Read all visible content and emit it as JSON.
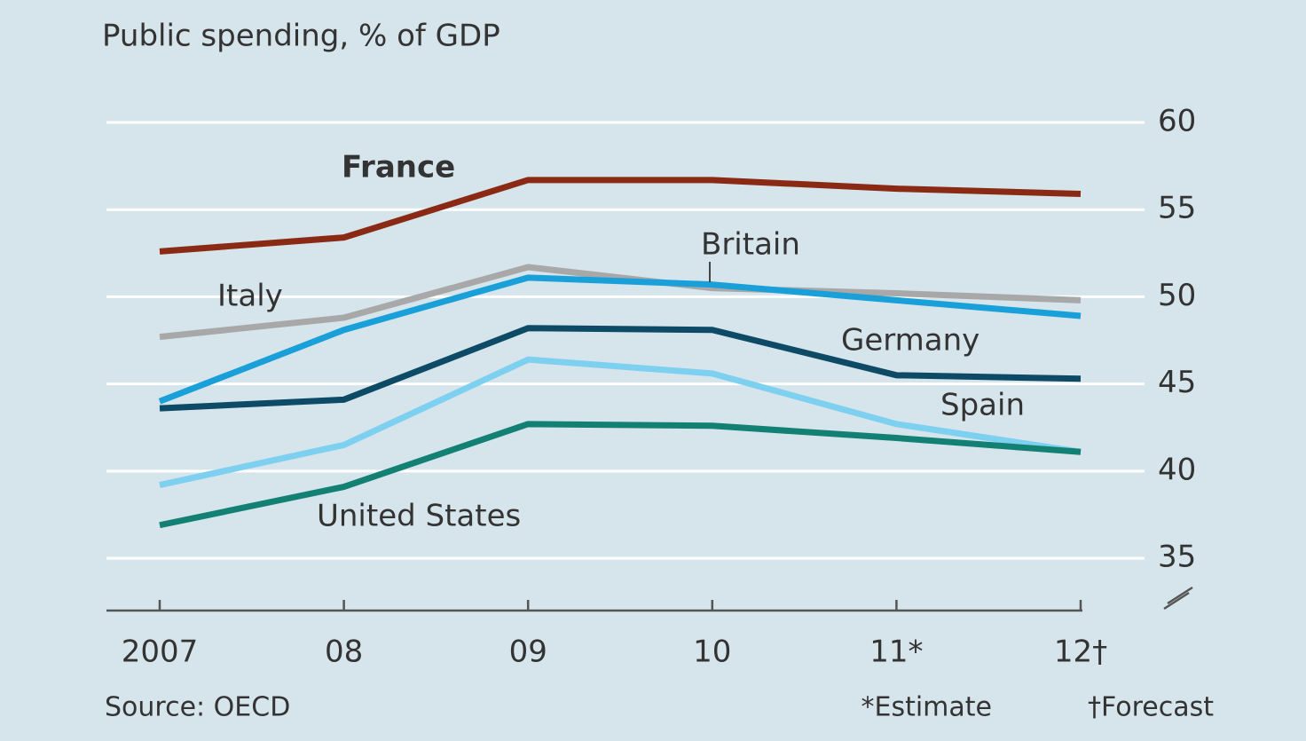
{
  "chart_data": {
    "type": "line",
    "title": "Public spending, % of GDP",
    "source": "Source: OECD",
    "notes": [
      "*Estimate",
      "†Forecast"
    ],
    "categories": [
      "2007",
      "08",
      "09",
      "10",
      "11*",
      "12†"
    ],
    "series": [
      {
        "name": "France",
        "color": "#8b2a14",
        "values": [
          52.6,
          53.4,
          56.7,
          56.7,
          56.2,
          55.9
        ]
      },
      {
        "name": "Italy",
        "color": "#a8a8a8",
        "values": [
          47.7,
          48.8,
          51.7,
          50.5,
          50.2,
          49.8
        ]
      },
      {
        "name": "Britain",
        "color": "#1aa0d8",
        "values": [
          44.0,
          48.1,
          51.1,
          50.7,
          49.8,
          48.9
        ]
      },
      {
        "name": "Germany",
        "color": "#0d4a66",
        "values": [
          43.6,
          44.1,
          48.2,
          48.1,
          45.5,
          45.3
        ]
      },
      {
        "name": "Spain",
        "color": "#7dd0f0",
        "values": [
          39.2,
          41.5,
          46.4,
          45.6,
          42.7,
          41.1
        ]
      },
      {
        "name": "United States",
        "color": "#138074",
        "values": [
          36.9,
          39.1,
          42.7,
          42.6,
          41.9,
          41.1
        ]
      }
    ],
    "ylim": [
      32,
      60
    ],
    "yticks": [
      35,
      40,
      45,
      50,
      55,
      60
    ],
    "grid": true,
    "y_axis_side": "right"
  }
}
